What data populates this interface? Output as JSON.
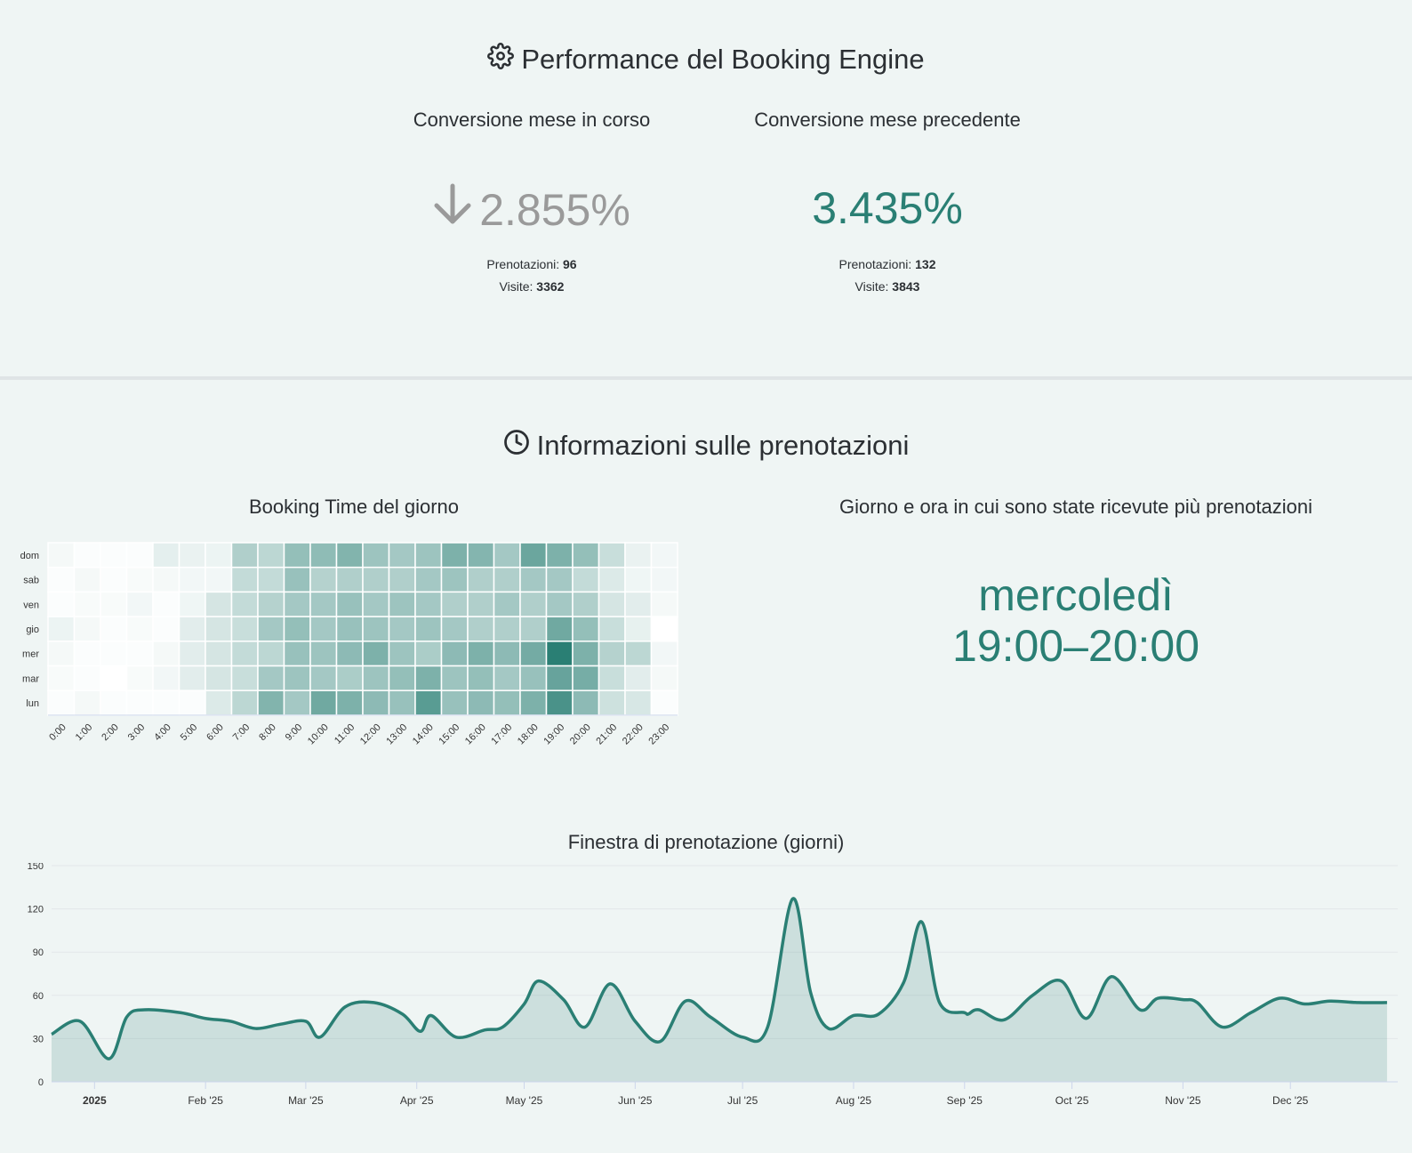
{
  "performance": {
    "title": "Performance del Booking Engine",
    "icon": "gear-icon",
    "current": {
      "label": "Conversione mese in corso",
      "value": "2.855%",
      "trend_icon": "arrow-down-icon",
      "bookings_label": "Prenotazioni:",
      "bookings": "96",
      "visits_label": "Visite:",
      "visits": "3362",
      "color": "#9a9a9a"
    },
    "previous": {
      "label": "Conversione mese precedente",
      "value": "3.435%",
      "bookings_label": "Prenotazioni:",
      "bookings": "132",
      "visits_label": "Visite:",
      "visits": "3843",
      "color": "#2a7f74"
    }
  },
  "bookings_info": {
    "title": "Informazioni sulle prenotazioni",
    "icon": "clock-icon",
    "heatmap_title": "Booking Time del giorno",
    "peak_title": "Giorno e ora in cui sono state ricevute più prenotazioni",
    "peak_day": "mercoledì",
    "peak_time": "19:00–20:00",
    "window_title": "Finestra di prenotazione (giorni)"
  },
  "chart_data": [
    {
      "type": "heatmap",
      "title": "Booking Time del giorno",
      "rows": [
        "dom",
        "sab",
        "ven",
        "gio",
        "mer",
        "mar",
        "lun"
      ],
      "columns": [
        "0:00",
        "1:00",
        "2:00",
        "3:00",
        "4:00",
        "5:00",
        "6:00",
        "7:00",
        "8:00",
        "9:00",
        "10:00",
        "11:00",
        "12:00",
        "13:00",
        "14:00",
        "15:00",
        "16:00",
        "17:00",
        "18:00",
        "19:00",
        "20:00",
        "21:00",
        "22:00",
        "23:00"
      ],
      "values": [
        [
          3,
          1,
          1,
          1,
          9,
          7,
          6,
          30,
          25,
          42,
          44,
          50,
          38,
          35,
          38,
          52,
          49,
          35,
          60,
          52,
          42,
          20,
          7,
          4
        ],
        [
          1,
          3,
          1,
          2,
          3,
          4,
          4,
          22,
          22,
          40,
          28,
          30,
          30,
          30,
          35,
          38,
          30,
          30,
          35,
          35,
          22,
          12,
          5,
          4
        ],
        [
          1,
          2,
          2,
          4,
          1,
          5,
          15,
          22,
          28,
          35,
          35,
          40,
          35,
          38,
          35,
          30,
          30,
          35,
          30,
          35,
          30,
          15,
          10,
          3
        ],
        [
          6,
          3,
          1,
          2,
          1,
          10,
          15,
          20,
          35,
          42,
          35,
          40,
          38,
          35,
          38,
          35,
          30,
          30,
          30,
          58,
          42,
          20,
          8,
          0
        ],
        [
          3,
          1,
          1,
          1,
          3,
          10,
          15,
          22,
          25,
          40,
          38,
          45,
          52,
          38,
          32,
          45,
          52,
          45,
          56,
          90,
          52,
          28,
          25,
          4
        ],
        [
          2,
          1,
          0,
          2,
          4,
          10,
          15,
          20,
          35,
          38,
          35,
          32,
          38,
          42,
          52,
          38,
          42,
          35,
          40,
          62,
          55,
          20,
          10,
          3
        ],
        [
          1,
          3,
          1,
          1,
          1,
          1,
          12,
          25,
          50,
          35,
          58,
          52,
          45,
          40,
          68,
          40,
          45,
          42,
          52,
          75,
          45,
          18,
          14,
          1
        ]
      ],
      "color_low": "#ffffff",
      "color_high": "#2a7f74"
    },
    {
      "type": "area",
      "title": "Finestra di prenotazione (giorni)",
      "x_tick_labels": [
        "2025",
        "Feb '25",
        "Mar '25",
        "Apr '25",
        "May '25",
        "Jun '25",
        "Jul '25",
        "Aug '25",
        "Sep '25",
        "Oct '25",
        "Nov '25",
        "Dec '25"
      ],
      "y_ticks": [
        0,
        30,
        60,
        90,
        120,
        150
      ],
      "ylim": [
        0,
        150
      ],
      "x": [
        "2024-12-20",
        "2024-12-28",
        "2025-01-05",
        "2025-01-10",
        "2025-01-15",
        "2025-01-25",
        "2025-02-01",
        "2025-02-08",
        "2025-02-15",
        "2025-02-22",
        "2025-03-01",
        "2025-03-05",
        "2025-03-12",
        "2025-03-20",
        "2025-03-28",
        "2025-04-02",
        "2025-04-05",
        "2025-04-12",
        "2025-04-20",
        "2025-04-25",
        "2025-05-01",
        "2025-05-05",
        "2025-05-12",
        "2025-05-18",
        "2025-05-25",
        "2025-06-01",
        "2025-06-08",
        "2025-06-15",
        "2025-06-22",
        "2025-07-01",
        "2025-07-08",
        "2025-07-15",
        "2025-07-20",
        "2025-07-25",
        "2025-08-01",
        "2025-08-08",
        "2025-08-15",
        "2025-08-20",
        "2025-08-25",
        "2025-09-01",
        "2025-09-02",
        "2025-09-05",
        "2025-09-12",
        "2025-09-20",
        "2025-09-28",
        "2025-10-05",
        "2025-10-12",
        "2025-10-20",
        "2025-10-25",
        "2025-11-01",
        "2025-11-05",
        "2025-11-12",
        "2025-11-20",
        "2025-11-28",
        "2025-12-05",
        "2025-12-12",
        "2025-12-20",
        "2025-12-28"
      ],
      "y": [
        33,
        42,
        16,
        45,
        50,
        48,
        44,
        42,
        37,
        40,
        42,
        31,
        52,
        55,
        47,
        35,
        46,
        31,
        36,
        38,
        54,
        70,
        57,
        38,
        68,
        42,
        28,
        56,
        45,
        31,
        38,
        127,
        62,
        37,
        46,
        47,
        69,
        111,
        55,
        48,
        47,
        50,
        43,
        60,
        70,
        44,
        73,
        50,
        58,
        57,
        55,
        38,
        48,
        58,
        54,
        56,
        55,
        55
      ]
    }
  ]
}
